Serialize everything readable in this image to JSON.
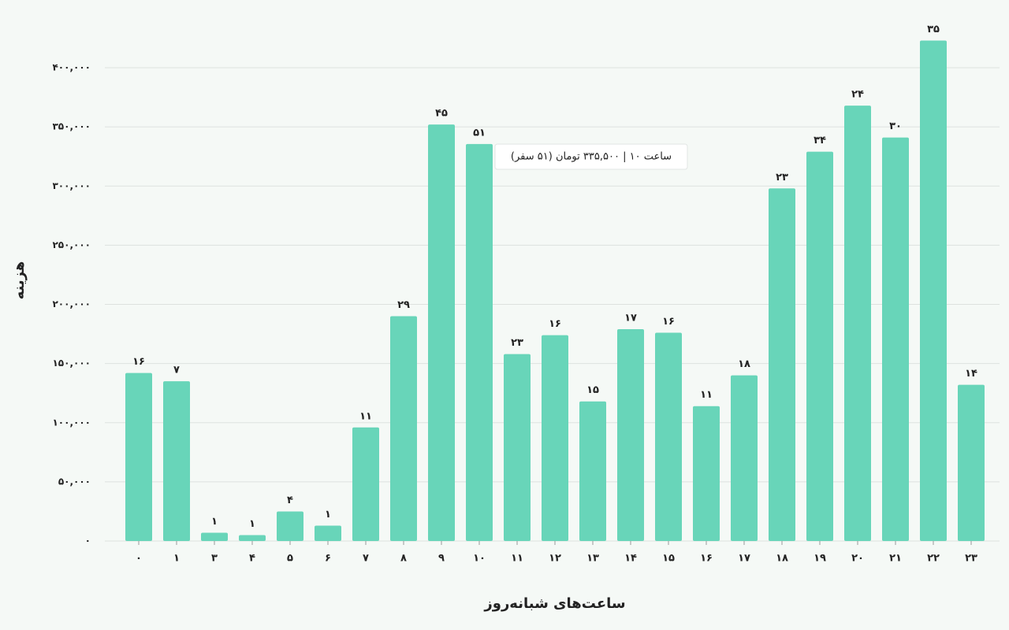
{
  "chart_data": {
    "type": "bar",
    "x_label": "ساعت‌های شبانه‌روز",
    "y_label": "هزینه",
    "categories": [
      "۰",
      "۱",
      "۳",
      "۴",
      "۵",
      "۶",
      "۷",
      "۸",
      "۹",
      "۱۰",
      "۱۱",
      "۱۲",
      "۱۳",
      "۱۴",
      "۱۵",
      "۱۶",
      "۱۷",
      "۱۸",
      "۱۹",
      "۲۰",
      "۲۱",
      "۲۲",
      "۲۳"
    ],
    "values": [
      142000,
      135000,
      7000,
      5000,
      25000,
      13000,
      96000,
      190000,
      352000,
      335500,
      158000,
      174000,
      118000,
      179000,
      176000,
      114000,
      140000,
      298000,
      329000,
      368000,
      341000,
      423000,
      132000
    ],
    "bar_labels": [
      "۱۶",
      "۷",
      "۱",
      "۱",
      "۴",
      "۱",
      "۱۱",
      "۲۹",
      "۴۵",
      "۵۱",
      "۲۳",
      "۱۶",
      "۱۵",
      "۱۷",
      "۱۶",
      "۱۱",
      "۱۸",
      "۲۳",
      "۳۴",
      "۲۴",
      "۳۰",
      "۳۵",
      "۱۴"
    ],
    "color": "#68d5b9",
    "ylim": [
      0,
      430000
    ],
    "yticks": [
      {
        "value": 0,
        "label": "۰"
      },
      {
        "value": 50000,
        "label": "۵۰,۰۰۰"
      },
      {
        "value": 100000,
        "label": "۱۰۰,۰۰۰"
      },
      {
        "value": 150000,
        "label": "۱۵۰,۰۰۰"
      },
      {
        "value": 200000,
        "label": "۲۰۰,۰۰۰"
      },
      {
        "value": 250000,
        "label": "۲۵۰,۰۰۰"
      },
      {
        "value": 300000,
        "label": "۳۰۰,۰۰۰"
      },
      {
        "value": 350000,
        "label": "۳۵۰,۰۰۰"
      },
      {
        "value": 400000,
        "label": "۴۰۰,۰۰۰"
      }
    ],
    "grid": true,
    "tooltip": "ساعت ۱۰ | ۳۳۵,۵۰۰ تومان (۵۱ سفر)"
  }
}
